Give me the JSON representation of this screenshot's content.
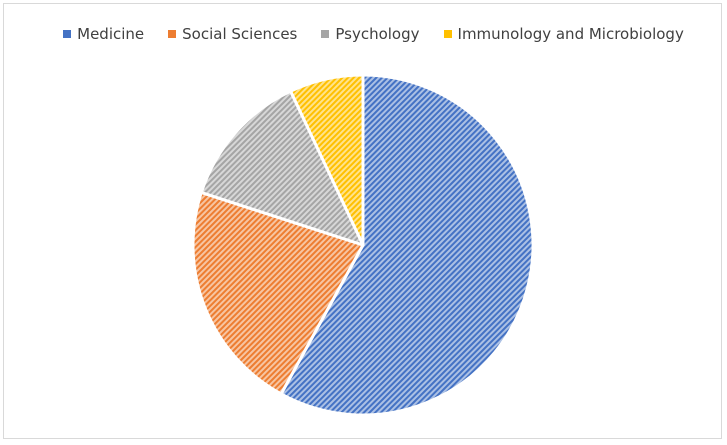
{
  "chart_data": {
    "type": "pie",
    "categories": [
      "Medicine",
      "Social Sciences",
      "Psychology",
      "Immunology and Microbiology"
    ],
    "values": [
      58,
      22,
      13,
      7
    ],
    "colors": [
      "#4472c4",
      "#ed7d31",
      "#a5a5a5",
      "#ffc000"
    ],
    "title": "",
    "legend": "top",
    "start_angle_deg": 0,
    "direction": "clockwise",
    "fill_pattern": "diagonal-hatch"
  }
}
